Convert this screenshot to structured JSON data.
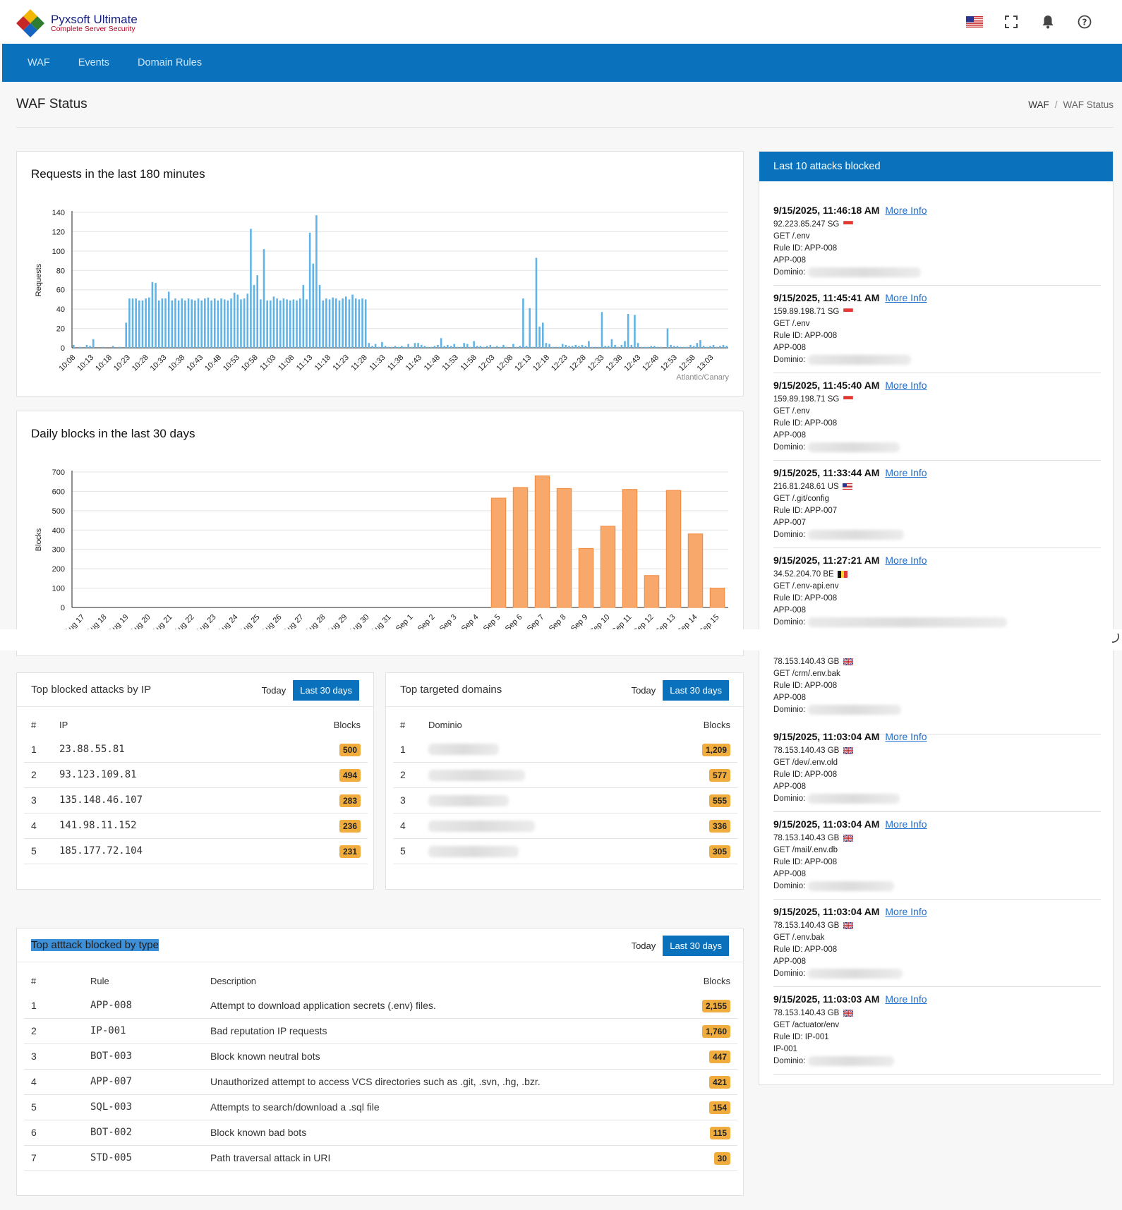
{
  "app": {
    "name": "Pyxsoft Ultimate",
    "tagline": "Complete  Server Security"
  },
  "nav": {
    "items": [
      "WAF",
      "Events",
      "Domain Rules"
    ]
  },
  "page": {
    "title": "WAF Status",
    "breadcrumb": [
      "WAF",
      "WAF Status"
    ]
  },
  "icons": {
    "flag": "us-flag-icon",
    "fullscreen": "fullscreen-icon",
    "bell": "bell-icon",
    "help": "help-icon"
  },
  "colors": {
    "accent": "#0a72bd",
    "bar_blue": "#5fb3e6",
    "bar_orange": "#f9a86b",
    "badge": "#f0ad3e"
  },
  "requests_chart": {
    "title": "Requests in the last 180 minutes",
    "timezone_note": "Atlantic/Canary",
    "chart_data": {
      "type": "bar",
      "ylabel": "Requests",
      "ylim": [
        0,
        140
      ],
      "yticks": [
        0,
        20,
        40,
        60,
        80,
        100,
        120,
        140
      ],
      "xtick_labels": [
        "10:08",
        "10:13",
        "10:18",
        "10:23",
        "10:28",
        "10:33",
        "10:38",
        "10:43",
        "10:48",
        "10:53",
        "10:58",
        "11:03",
        "11:08",
        "11:13",
        "11:18",
        "11:23",
        "11:28",
        "11:33",
        "11:38",
        "11:43",
        "11:48",
        "11:53",
        "11:58",
        "12:03",
        "12:08",
        "12:13",
        "12:18",
        "12:23",
        "12:28",
        "12:33",
        "12:38",
        "12:43",
        "12:48",
        "12:53",
        "12:58",
        "13:03"
      ],
      "values": [
        3,
        0,
        1,
        0,
        3,
        2,
        9,
        0,
        0,
        1,
        0,
        0,
        2,
        0,
        1,
        0,
        26,
        51,
        51,
        51,
        49,
        49,
        51,
        52,
        68,
        67,
        49,
        51,
        51,
        58,
        49,
        51,
        49,
        51,
        49,
        51,
        50,
        49,
        51,
        49,
        51,
        52,
        49,
        51,
        49,
        51,
        50,
        49,
        51,
        57,
        55,
        50,
        51,
        56,
        123,
        65,
        75,
        50,
        102,
        49,
        49,
        53,
        51,
        49,
        51,
        50,
        49,
        50,
        49,
        51,
        65,
        50,
        119,
        87,
        137,
        65,
        49,
        51,
        50,
        52,
        51,
        49,
        51,
        53,
        50,
        55,
        51,
        50,
        51,
        50,
        5,
        2,
        4,
        1,
        6,
        2,
        1,
        1,
        2,
        1,
        2,
        1,
        4,
        1,
        5,
        5,
        3,
        2,
        1,
        1,
        2,
        3,
        10,
        2,
        3,
        2,
        4,
        1,
        1,
        5,
        4,
        1,
        7,
        2,
        2,
        1,
        2,
        3,
        1,
        2,
        1,
        3,
        1,
        0,
        4,
        1,
        2,
        51,
        2,
        41,
        1,
        93,
        22,
        26,
        5,
        4,
        1,
        1,
        1,
        4,
        3,
        2,
        2,
        3,
        2,
        3,
        2,
        7,
        1,
        1,
        1,
        37,
        2,
        2,
        9,
        3,
        1,
        3,
        7,
        35,
        3,
        34,
        5,
        1,
        1,
        1,
        2,
        2,
        1,
        1,
        0,
        20,
        3,
        2,
        2,
        1,
        1,
        1,
        3,
        2,
        5,
        8,
        2,
        1,
        2,
        3,
        1,
        2,
        3,
        2
      ]
    }
  },
  "daily_chart": {
    "title": "Daily blocks in the last 30 days",
    "chart_data": {
      "type": "bar",
      "ylabel": "Blocks",
      "ylim": [
        0,
        700
      ],
      "yticks": [
        0,
        100,
        200,
        300,
        400,
        500,
        600,
        700
      ],
      "categories": [
        "Aug 17",
        "Aug 18",
        "Aug 19",
        "Aug 20",
        "Aug 21",
        "Aug 22",
        "Aug 23",
        "Aug 24",
        "Aug 25",
        "Aug 26",
        "Aug 27",
        "Aug 28",
        "Aug 29",
        "Aug 30",
        "Aug 31",
        "Sep 1",
        "Sep 2",
        "Sep 3",
        "Sep 4",
        "Sep 5",
        "Sep 6",
        "Sep 7",
        "Sep 8",
        "Sep 9",
        "Sep 10",
        "Sep 11",
        "Sep 12",
        "Sep 13",
        "Sep 14",
        "Sep 15"
      ],
      "values": [
        0,
        0,
        0,
        0,
        0,
        0,
        0,
        0,
        0,
        0,
        0,
        0,
        0,
        0,
        0,
        0,
        0,
        0,
        0,
        565,
        620,
        680,
        615,
        305,
        420,
        610,
        165,
        605,
        380,
        100
      ]
    }
  },
  "top_ip": {
    "title": "Top blocked attacks by IP",
    "tabs": [
      "Today",
      "Last 30 days"
    ],
    "headers": [
      "#",
      "IP",
      "Blocks"
    ],
    "rows": [
      {
        "n": "1",
        "ip": "23.88.55.81",
        "blocks": "500"
      },
      {
        "n": "2",
        "ip": "93.123.109.81",
        "blocks": "494"
      },
      {
        "n": "3",
        "ip": "135.148.46.107",
        "blocks": "283"
      },
      {
        "n": "4",
        "ip": "141.98.11.152",
        "blocks": "236"
      },
      {
        "n": "5",
        "ip": "185.177.72.104",
        "blocks": "231"
      }
    ]
  },
  "top_domains": {
    "title": "Top targeted domains",
    "tabs": [
      "Today",
      "Last 30 days"
    ],
    "headers": [
      "#",
      "Dominio",
      "Blocks"
    ],
    "rows": [
      {
        "n": "1",
        "blocks": "1,209"
      },
      {
        "n": "2",
        "blocks": "577"
      },
      {
        "n": "3",
        "blocks": "555"
      },
      {
        "n": "4",
        "blocks": "336"
      },
      {
        "n": "5",
        "blocks": "305"
      }
    ]
  },
  "top_types": {
    "title": "Top atttack blocked by type",
    "tabs": [
      "Today",
      "Last 30 days"
    ],
    "headers": [
      "#",
      "Rule",
      "Description",
      "Blocks"
    ],
    "rows": [
      {
        "n": "1",
        "rule": "APP-008",
        "desc": "Attempt to download application secrets (.env) files.",
        "blocks": "2,155"
      },
      {
        "n": "2",
        "rule": "IP-001",
        "desc": "Bad reputation IP requests",
        "blocks": "1,760"
      },
      {
        "n": "3",
        "rule": "BOT-003",
        "desc": "Block known neutral bots",
        "blocks": "447"
      },
      {
        "n": "4",
        "rule": "APP-007",
        "desc": "Unauthorized attempt to access VCS directories such as .git, .svn, .hg, .bzr.",
        "blocks": "421"
      },
      {
        "n": "5",
        "rule": "SQL-003",
        "desc": "Attempts to search/download a .sql file",
        "blocks": "154"
      },
      {
        "n": "6",
        "rule": "BOT-002",
        "desc": "Block known bad bots",
        "blocks": "115"
      },
      {
        "n": "7",
        "rule": "STD-005",
        "desc": "Path traversal attack in URI",
        "blocks": "30"
      }
    ]
  },
  "last_attacks": {
    "title": "Last 10 attacks blocked",
    "more_info": "More Info",
    "dominio_label": "Dominio:",
    "items": [
      {
        "time": "9/15/2025, 11:46:18 AM",
        "ip": "92.223.85.247 SG",
        "flag": "sg",
        "req": "GET /.env",
        "rule_id": "Rule ID: APP-008",
        "rule": "APP-008"
      },
      {
        "time": "9/15/2025, 11:45:41 AM",
        "ip": "159.89.198.71 SG",
        "flag": "sg",
        "req": "GET /.env",
        "rule_id": "Rule ID: APP-008",
        "rule": "APP-008"
      },
      {
        "time": "9/15/2025, 11:45:40 AM",
        "ip": "159.89.198.71 SG",
        "flag": "sg",
        "req": "GET /.env",
        "rule_id": "Rule ID: APP-008",
        "rule": "APP-008"
      },
      {
        "time": "9/15/2025, 11:33:44 AM",
        "ip": "216.81.248.61 US",
        "flag": "us",
        "req": "GET /.git/config",
        "rule_id": "Rule ID: APP-007",
        "rule": "APP-007"
      },
      {
        "time": "9/15/2025, 11:27:21 AM",
        "ip": "34.52.204.70 BE",
        "flag": "be",
        "req": "GET /.env-api.env",
        "rule_id": "Rule ID: APP-008",
        "rule": "APP-008"
      },
      {
        "time": "",
        "ip": "78.153.140.43 GB",
        "flag": "gb",
        "req": "GET /crm/.env.bak",
        "rule_id": "Rule ID: APP-008",
        "rule": "APP-008"
      },
      {
        "time": "9/15/2025, 11:03:04 AM",
        "ip": "78.153.140.43 GB",
        "flag": "gb",
        "req": "GET /dev/.env.old",
        "rule_id": "Rule ID: APP-008",
        "rule": "APP-008"
      },
      {
        "time": "9/15/2025, 11:03:04 AM",
        "ip": "78.153.140.43 GB",
        "flag": "gb",
        "req": "GET /mail/.env.db",
        "rule_id": "Rule ID: APP-008",
        "rule": "APP-008"
      },
      {
        "time": "9/15/2025, 11:03:04 AM",
        "ip": "78.153.140.43 GB",
        "flag": "gb",
        "req": "GET /.env.bak",
        "rule_id": "Rule ID: APP-008",
        "rule": "APP-008"
      },
      {
        "time": "9/15/2025, 11:03:03 AM",
        "ip": "78.153.140.43 GB",
        "flag": "gb",
        "req": "GET /actuator/env",
        "rule_id": "Rule ID: IP-001",
        "rule": "IP-001"
      }
    ]
  }
}
